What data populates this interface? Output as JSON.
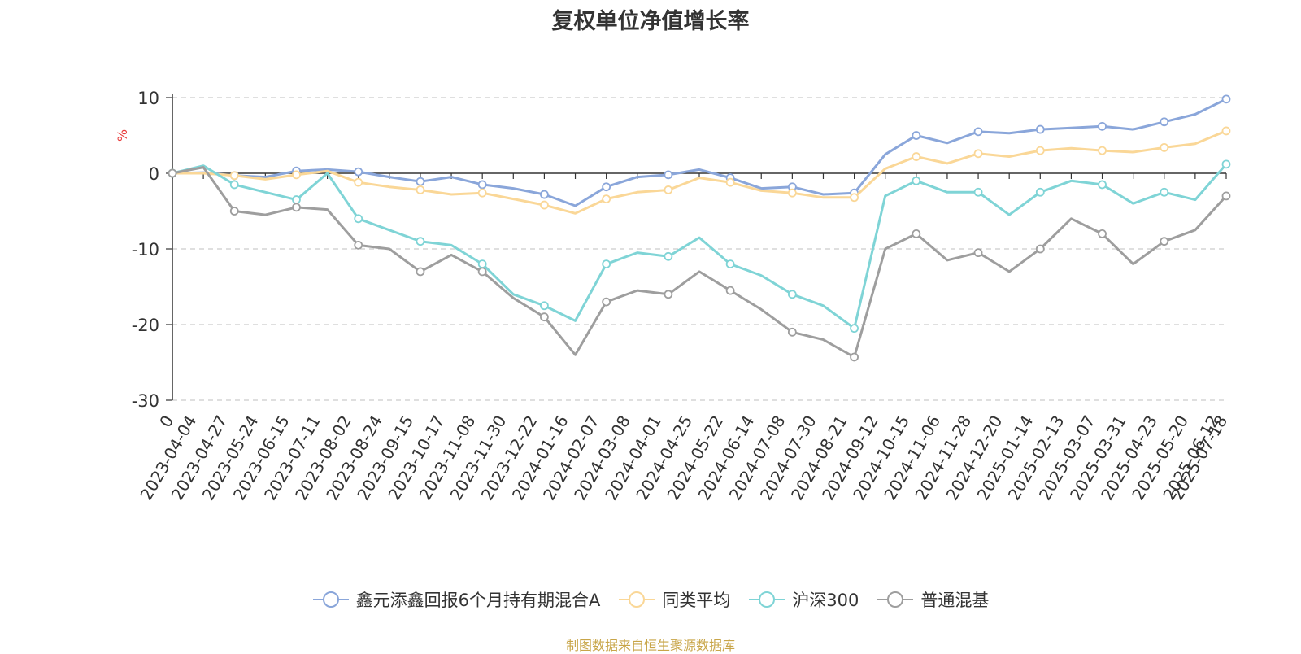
{
  "chart_data": {
    "type": "line",
    "title": "复权单位净值增长率",
    "ylabel": "%",
    "ylim": [
      -30,
      10
    ],
    "yticks": [
      10,
      0,
      -10,
      -20,
      -30
    ],
    "categories": [
      "2023-04-04",
      "2023-04-27",
      "2023-05-24",
      "2023-06-15",
      "2023-07-11",
      "2023-08-02",
      "2023-08-24",
      "2023-09-15",
      "2023-10-17",
      "2023-11-08",
      "2023-11-30",
      "2023-12-22",
      "2024-01-16",
      "2024-02-07",
      "2024-03-08",
      "2024-04-01",
      "2024-04-25",
      "2024-05-22",
      "2024-06-14",
      "2024-07-08",
      "2024-07-30",
      "2024-08-21",
      "2024-09-12",
      "2024-10-15",
      "2024-11-06",
      "2024-11-28",
      "2024-12-20",
      "2025-01-14",
      "2025-02-13",
      "2025-03-07",
      "2025-03-31",
      "2025-04-23",
      "2025-05-20",
      "2025-06-12",
      "2025-07-18"
    ],
    "first_tick_label": "0",
    "grid": true,
    "legend_position": "bottom",
    "series": [
      {
        "name": "鑫元添鑫回报6个月持有期混合A",
        "color": "#8aa6da",
        "values": [
          0,
          0.1,
          -0.3,
          -0.5,
          0.3,
          0.5,
          0.2,
          -0.5,
          -1.1,
          -0.5,
          -1.5,
          -2.0,
          -2.8,
          -4.3,
          -1.8,
          -0.5,
          -0.2,
          0.5,
          -0.6,
          -2.0,
          -1.8,
          -2.8,
          -2.6,
          2.5,
          5.0,
          4.0,
          5.5,
          5.3,
          5.8,
          6.0,
          6.2,
          5.8,
          6.8,
          7.8,
          9.8
        ]
      },
      {
        "name": "同类平均",
        "color": "#fad797",
        "values": [
          0,
          0,
          -0.3,
          -0.8,
          -0.2,
          0.3,
          -1.2,
          -1.8,
          -2.2,
          -2.8,
          -2.6,
          -3.4,
          -4.2,
          -5.3,
          -3.4,
          -2.5,
          -2.2,
          -0.6,
          -1.2,
          -2.3,
          -2.6,
          -3.2,
          -3.2,
          0.6,
          2.2,
          1.3,
          2.6,
          2.2,
          3.0,
          3.3,
          3.0,
          2.8,
          3.4,
          3.9,
          5.6
        ]
      },
      {
        "name": "沪深300",
        "color": "#7fd4d6",
        "values": [
          0,
          1.0,
          -1.5,
          -2.5,
          -3.5,
          0,
          -6.0,
          -7.5,
          -9.0,
          -9.5,
          -12.0,
          -16.0,
          -17.5,
          -19.5,
          -12.0,
          -10.5,
          -11.0,
          -8.5,
          -12.0,
          -13.5,
          -16.0,
          -17.5,
          -20.5,
          -3.0,
          -1.0,
          -2.5,
          -2.5,
          -5.5,
          -2.5,
          -1.0,
          -1.5,
          -4.0,
          -2.5,
          -3.5,
          1.2
        ]
      },
      {
        "name": "普通混基",
        "color": "#9e9e9e",
        "values": [
          0,
          0.8,
          -5.0,
          -5.5,
          -4.5,
          -4.8,
          -9.5,
          -10.0,
          -13.0,
          -10.8,
          -13.0,
          -16.5,
          -19.0,
          -24.0,
          -17.0,
          -15.5,
          -16.0,
          -13.0,
          -15.5,
          -18.0,
          -21.0,
          -22.0,
          -24.3,
          -10.0,
          -8.0,
          -11.5,
          -10.5,
          -13.0,
          -10.0,
          -6.0,
          -8.0,
          -12.0,
          -9.0,
          -7.5,
          -3.0
        ]
      }
    ]
  },
  "legend": {
    "items": [
      {
        "label": "鑫元添鑫回报6个月持有期混合A",
        "color": "#8aa6da"
      },
      {
        "label": "同类平均",
        "color": "#fad797"
      },
      {
        "label": "沪深300",
        "color": "#7fd4d6"
      },
      {
        "label": "普通混基",
        "color": "#9e9e9e"
      }
    ]
  },
  "source_note": "制图数据来自恒生聚源数据库",
  "ylabel_color": "#e83b3b"
}
